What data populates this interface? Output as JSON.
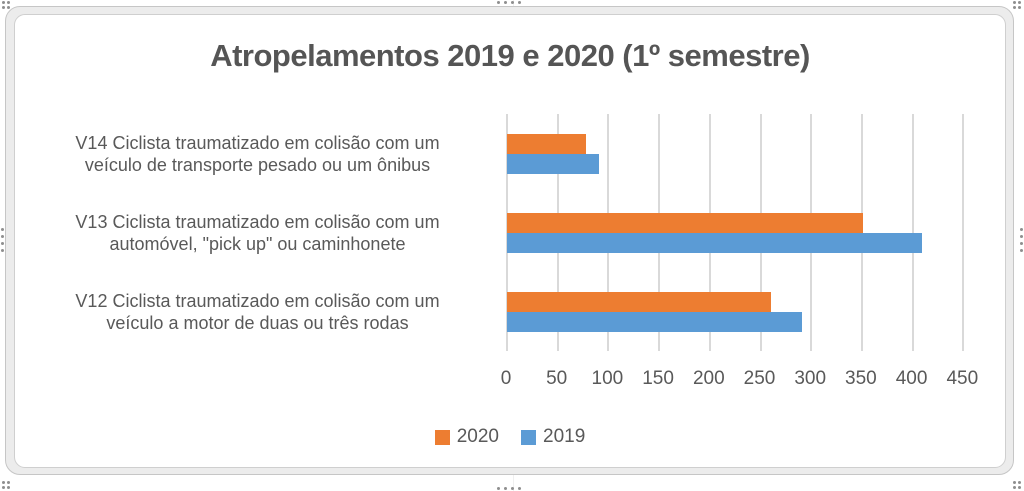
{
  "chart": {
    "title": "Atropelamentos 2019 e 2020 (1º semestre)"
  },
  "icons": {
    "resize_handles": [
      "top-left",
      "top-center",
      "top-right",
      "right-middle",
      "bottom-right",
      "bottom-center",
      "bottom-left",
      "left-middle"
    ]
  },
  "colors": {
    "series_2020": "#ED7D31",
    "series_2019": "#5B9BD5",
    "text": "#595959",
    "gridline": "#D9D9D9",
    "frame_fill": "#ECECEC",
    "frame_border": "#C6C6C6",
    "chart_background": "#FFFFFF"
  },
  "chart_data": {
    "type": "bar",
    "orientation": "horizontal",
    "title": "Atropelamentos 2019 e 2020 (1º semestre)",
    "categories": [
      "V14 Ciclista traumatizado em colisão com um\nveículo de transporte pesado ou um ônibus",
      "V13 Ciclista traumatizado em colisão com um\nautomóvel, \"pick up\" ou caminhonete",
      "V12 Ciclista traumatizado em colisão com um\nveículo a motor de duas ou três rodas"
    ],
    "category_order": "top-to-bottom",
    "series": [
      {
        "name": "2020",
        "color": "#ED7D31",
        "values": [
          78,
          351,
          260
        ]
      },
      {
        "name": "2019",
        "color": "#5B9BD5",
        "values": [
          91,
          409,
          291
        ]
      }
    ],
    "xlabel": "",
    "ylabel": "",
    "xlim": [
      0,
      450
    ],
    "xticks": [
      0,
      50,
      100,
      150,
      200,
      250,
      300,
      350,
      400,
      450
    ],
    "grid": true,
    "legend_position": "bottom"
  }
}
